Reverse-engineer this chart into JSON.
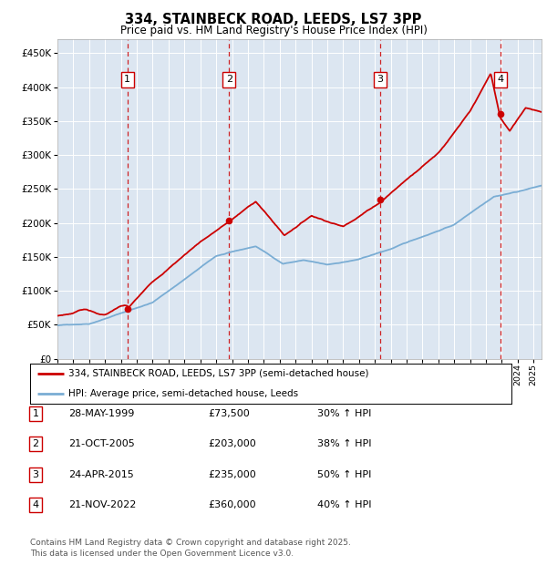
{
  "title": "334, STAINBECK ROAD, LEEDS, LS7 3PP",
  "subtitle": "Price paid vs. HM Land Registry's House Price Index (HPI)",
  "ylim": [
    0,
    470000
  ],
  "yticks": [
    0,
    50000,
    100000,
    150000,
    200000,
    250000,
    300000,
    350000,
    400000,
    450000
  ],
  "ytick_labels": [
    "£0",
    "£50K",
    "£100K",
    "£150K",
    "£200K",
    "£250K",
    "£300K",
    "£350K",
    "£400K",
    "£450K"
  ],
  "plot_bg_color": "#dce6f1",
  "red_line_color": "#cc0000",
  "blue_line_color": "#7aadd4",
  "sale_years": [
    1999.41,
    2005.81,
    2015.32,
    2022.9
  ],
  "sale_prices": [
    73500,
    203000,
    235000,
    360000
  ],
  "sale_labels": [
    "1",
    "2",
    "3",
    "4"
  ],
  "legend_red_label": "334, STAINBECK ROAD, LEEDS, LS7 3PP (semi-detached house)",
  "legend_blue_label": "HPI: Average price, semi-detached house, Leeds",
  "table_entries": [
    {
      "num": "1",
      "date": "28-MAY-1999",
      "price": "£73,500",
      "change": "30% ↑ HPI"
    },
    {
      "num": "2",
      "date": "21-OCT-2005",
      "price": "£203,000",
      "change": "38% ↑ HPI"
    },
    {
      "num": "3",
      "date": "24-APR-2015",
      "price": "£235,000",
      "change": "50% ↑ HPI"
    },
    {
      "num": "4",
      "date": "21-NOV-2022",
      "price": "£360,000",
      "change": "40% ↑ HPI"
    }
  ],
  "footnote": "Contains HM Land Registry data © Crown copyright and database right 2025.\nThis data is licensed under the Open Government Licence v3.0.",
  "xmin": 1995,
  "xmax": 2025.5
}
